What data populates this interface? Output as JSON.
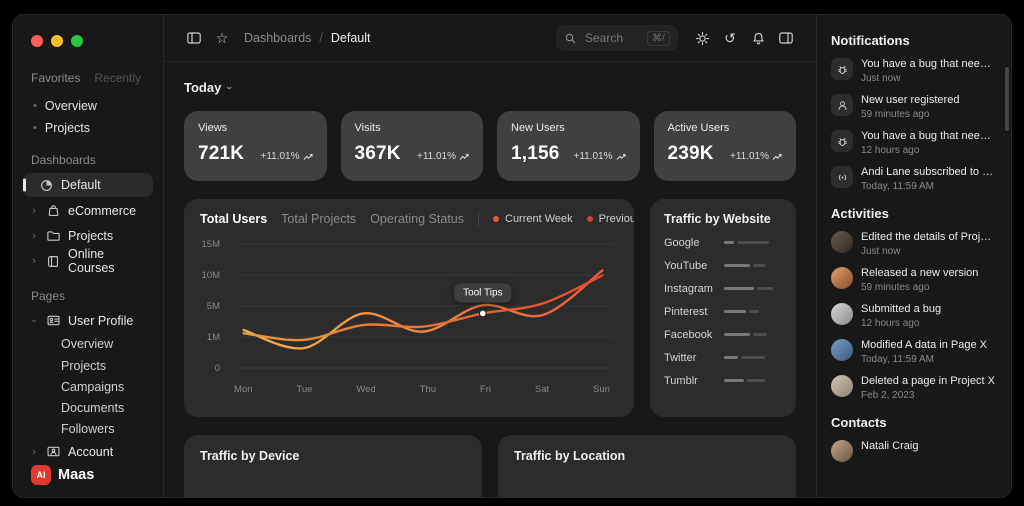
{
  "window": {
    "controls": [
      "#ff5f57",
      "#febc2e",
      "#28c840"
    ]
  },
  "sidebar": {
    "tabs": [
      {
        "label": "Favorites"
      },
      {
        "label": "Recently"
      }
    ],
    "favorites": [
      {
        "label": "Overview"
      },
      {
        "label": "Projects"
      }
    ],
    "dashboards": {
      "title": "Dashboards",
      "items": [
        {
          "label": "Default"
        },
        {
          "label": "eCommerce"
        },
        {
          "label": "Projects"
        },
        {
          "label": "Online Courses"
        }
      ]
    },
    "pages": {
      "title": "Pages",
      "user_profile": {
        "label": "User Profile",
        "children": [
          {
            "label": "Overview"
          },
          {
            "label": "Projects"
          },
          {
            "label": "Campaigns"
          },
          {
            "label": "Documents"
          },
          {
            "label": "Followers"
          }
        ]
      },
      "account": {
        "label": "Account"
      }
    },
    "logo": {
      "text": "Maas",
      "badge": "AI",
      "color": "#e03a2c"
    }
  },
  "header": {
    "breadcrumb": {
      "section": "Dashboards",
      "separator": "/",
      "page": "Default"
    },
    "search": {
      "placeholder": "Search",
      "shortcut": "⌘/"
    }
  },
  "main": {
    "period": "Today",
    "stats": [
      {
        "label": "Views",
        "value": "721K",
        "delta": "+11.01%"
      },
      {
        "label": "Visits",
        "value": "367K",
        "delta": "+11.01%"
      },
      {
        "label": "New Users",
        "value": "1,156",
        "delta": "+11.01%"
      },
      {
        "label": "Active Users",
        "value": "239K",
        "delta": "+11.01%"
      }
    ],
    "chart": {
      "tabs": [
        {
          "label": "Total Users"
        },
        {
          "label": "Total Projects"
        },
        {
          "label": "Operating Status"
        }
      ],
      "legend": [
        {
          "label": "Current Week",
          "color": "#f1553a"
        },
        {
          "label": "Previous Week",
          "color": "#cf4433"
        }
      ],
      "tooltip": {
        "label": "Tool Tips",
        "series": 0,
        "index": 4
      },
      "chart_data": {
        "type": "line",
        "x": [
          "Mon",
          "Tue",
          "Wed",
          "Thu",
          "Fri",
          "Sat",
          "Sun"
        ],
        "yticks": [
          "15M",
          "10M",
          "5M",
          "1M",
          "0"
        ],
        "ylim": [
          0,
          15
        ],
        "series": [
          {
            "name": "Current Week",
            "gradient": [
              "#e89a3e",
              "#e84a2e"
            ],
            "values": [
              4.2,
              3.4,
              5.2,
              5.0,
              6.6,
              7.8,
              11.2
            ]
          },
          {
            "name": "Previous Week",
            "gradient": [
              "#f2b24a",
              "#ef5a3a"
            ],
            "values": [
              4.6,
              2.4,
              6.6,
              4.4,
              7.6,
              6.4,
              11.8
            ]
          }
        ]
      }
    },
    "traffic_website": {
      "title": "Traffic by Website",
      "bar_colors": [
        "#787878",
        "#4d4d4d"
      ],
      "sites": [
        {
          "name": "Google",
          "segments": [
            10,
            32
          ]
        },
        {
          "name": "YouTube",
          "segments": [
            26,
            12
          ]
        },
        {
          "name": "Instagram",
          "segments": [
            30,
            16
          ]
        },
        {
          "name": "Pinterest",
          "segments": [
            22,
            10
          ]
        },
        {
          "name": "Facebook",
          "segments": [
            26,
            14
          ]
        },
        {
          "name": "Twitter",
          "segments": [
            14,
            24
          ]
        },
        {
          "name": "Tumblr",
          "segments": [
            20,
            18
          ]
        }
      ]
    },
    "traffic_device": {
      "title": "Traffic by Device"
    },
    "traffic_location": {
      "title": "Traffic by Location"
    }
  },
  "right": {
    "notifications": {
      "title": "Notifications",
      "items": [
        {
          "text": "You have a bug that needs t...",
          "time": "Just now",
          "icon": "bug-icon"
        },
        {
          "text": "New user registered",
          "time": "59 minutes ago",
          "icon": "user-icon"
        },
        {
          "text": "You have a bug that needs t...",
          "time": "12 hours ago",
          "icon": "bug-icon"
        },
        {
          "text": "Andi Lane subscribed to you",
          "time": "Today, 11:59 AM",
          "icon": "broadcast-icon"
        }
      ]
    },
    "activities": {
      "title": "Activities",
      "items": [
        {
          "text": "Edited the details of Project X",
          "time": "Just now"
        },
        {
          "text": "Released a new version",
          "time": "59 minutes ago"
        },
        {
          "text": "Submitted a bug",
          "time": "12 hours ago"
        },
        {
          "text": "Modified A data in Page X",
          "time": "Today, 11:59 AM"
        },
        {
          "text": "Deleted a page in Project X",
          "time": "Feb 2, 2023"
        }
      ]
    },
    "contacts": {
      "title": "Contacts",
      "items": [
        {
          "name": "Natali Craig"
        }
      ]
    }
  }
}
